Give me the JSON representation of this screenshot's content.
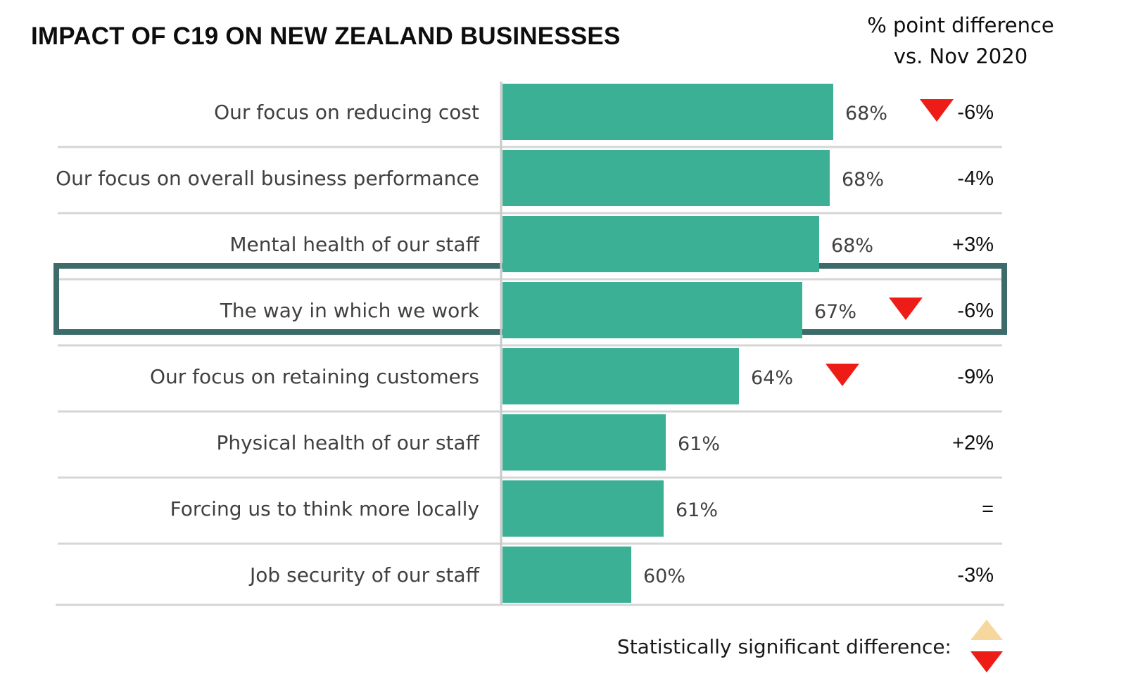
{
  "chart_data": {
    "type": "bar",
    "title": "IMPACT OF C19 ON NEW ZEALAND BUSINESSES",
    "diff_header_line1": "% point difference",
    "diff_header_line2": "vs. Nov 2020",
    "categories": [
      "Our focus on reducing cost",
      "Our focus on overall business performance",
      "Mental health of our staff",
      "The way in which we work",
      "Our focus on retaining customers",
      "Physical health of our staff",
      "Forcing us to think more locally",
      "Job security of our staff"
    ],
    "values": [
      68,
      68,
      68,
      67,
      64,
      61,
      61,
      60
    ],
    "value_labels": [
      "68%",
      "68%",
      "68%",
      "67%",
      "64%",
      "61%",
      "61%",
      "60%"
    ],
    "differences": [
      "-6%",
      "-4%",
      "+3%",
      "-6%",
      "-9%",
      "+2%",
      "=",
      "-3%"
    ],
    "significant": [
      "down",
      null,
      null,
      "down",
      "down",
      null,
      null,
      null
    ],
    "highlighted_category": "The way in which we work",
    "legend_label": "Statistically significant difference:",
    "colors": {
      "bar": "#3bb094",
      "down_marker": "#ee1c16",
      "up_marker": "#f6d79e",
      "highlight_border": "#3d6b6a",
      "divider": "#d6d6d6",
      "axis": "#c9c9c9"
    }
  }
}
